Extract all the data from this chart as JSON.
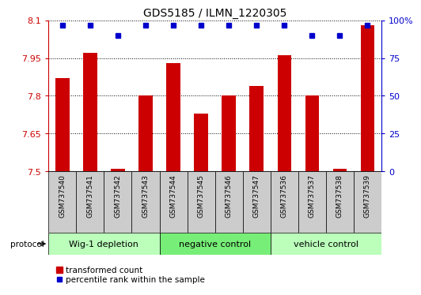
{
  "title": "GDS5185 / ILMN_1220305",
  "samples": [
    "GSM737540",
    "GSM737541",
    "GSM737542",
    "GSM737543",
    "GSM737544",
    "GSM737545",
    "GSM737546",
    "GSM737547",
    "GSM737536",
    "GSM737537",
    "GSM737538",
    "GSM737539"
  ],
  "bar_values": [
    7.87,
    7.97,
    7.51,
    7.8,
    7.93,
    7.73,
    7.8,
    7.84,
    7.96,
    7.8,
    7.51,
    8.08
  ],
  "percentile_values": [
    97,
    97,
    90,
    97,
    97,
    97,
    97,
    97,
    97,
    90,
    90,
    97
  ],
  "ylim_left": [
    7.5,
    8.1
  ],
  "ylim_right": [
    0,
    100
  ],
  "yticks_left": [
    7.5,
    7.65,
    7.8,
    7.95,
    8.1
  ],
  "yticks_right": [
    0,
    25,
    50,
    75,
    100
  ],
  "ytick_labels_left": [
    "7.5",
    "7.65",
    "7.8",
    "7.95",
    "8.1"
  ],
  "ytick_labels_right": [
    "0",
    "25",
    "50",
    "75",
    "100%"
  ],
  "bar_color": "#cc0000",
  "dot_color": "#0000cc",
  "groups": [
    {
      "label": "Wig-1 depletion",
      "start": 0,
      "end": 4
    },
    {
      "label": "negative control",
      "start": 4,
      "end": 8
    },
    {
      "label": "vehicle control",
      "start": 8,
      "end": 12
    }
  ],
  "group_colors": [
    "#bbffbb",
    "#77ee77",
    "#bbffbb"
  ],
  "sample_box_color": "#cccccc",
  "legend_red_label": "transformed count",
  "legend_blue_label": "percentile rank within the sample",
  "protocol_label": "protocol",
  "left_axis_color": "#cc0000",
  "right_axis_color": "#0000cc"
}
